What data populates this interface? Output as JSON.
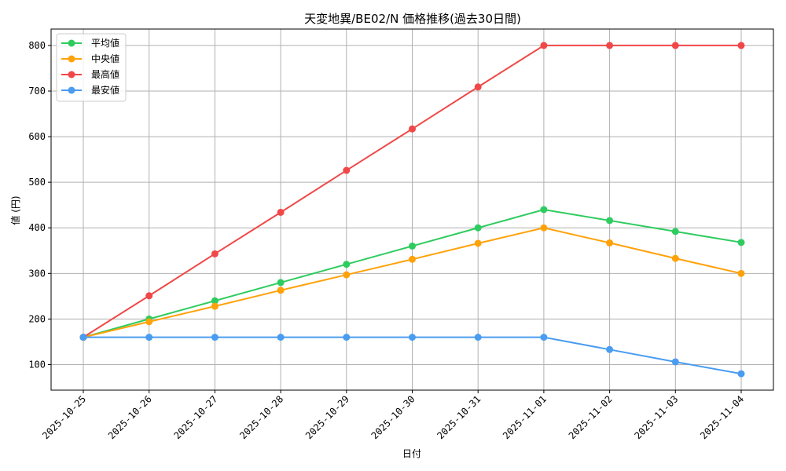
{
  "chart_data": {
    "type": "line",
    "title": "天変地異/BE02/N 価格推移(過去30日間)",
    "xlabel": "日付",
    "ylabel": "値 (円)",
    "x": [
      "2025-10-25",
      "2025-10-26",
      "2025-10-27",
      "2025-10-28",
      "2025-10-29",
      "2025-10-30",
      "2025-10-31",
      "2025-11-01",
      "2025-11-02",
      "2025-11-03",
      "2025-11-04"
    ],
    "ylim": [
      44,
      836
    ],
    "yticks": [
      100,
      200,
      300,
      400,
      500,
      600,
      700,
      800
    ],
    "grid": true,
    "legend_position": "top-left",
    "series": [
      {
        "name": "平均値",
        "color": "#2ecc5f",
        "values": [
          160,
          200,
          240,
          280,
          320,
          360,
          400,
          440,
          416,
          392,
          368
        ]
      },
      {
        "name": "中央値",
        "color": "#ffa20a",
        "values": [
          160,
          194,
          228,
          263,
          297,
          331,
          366,
          400,
          367,
          333,
          300
        ]
      },
      {
        "name": "最高値",
        "color": "#f04848",
        "values": [
          160,
          251,
          343,
          434,
          526,
          617,
          709,
          800,
          800,
          800,
          800
        ]
      },
      {
        "name": "最安値",
        "color": "#4a9cf0",
        "values": [
          160,
          160,
          160,
          160,
          160,
          160,
          160,
          160,
          133,
          106,
          80
        ]
      }
    ]
  }
}
